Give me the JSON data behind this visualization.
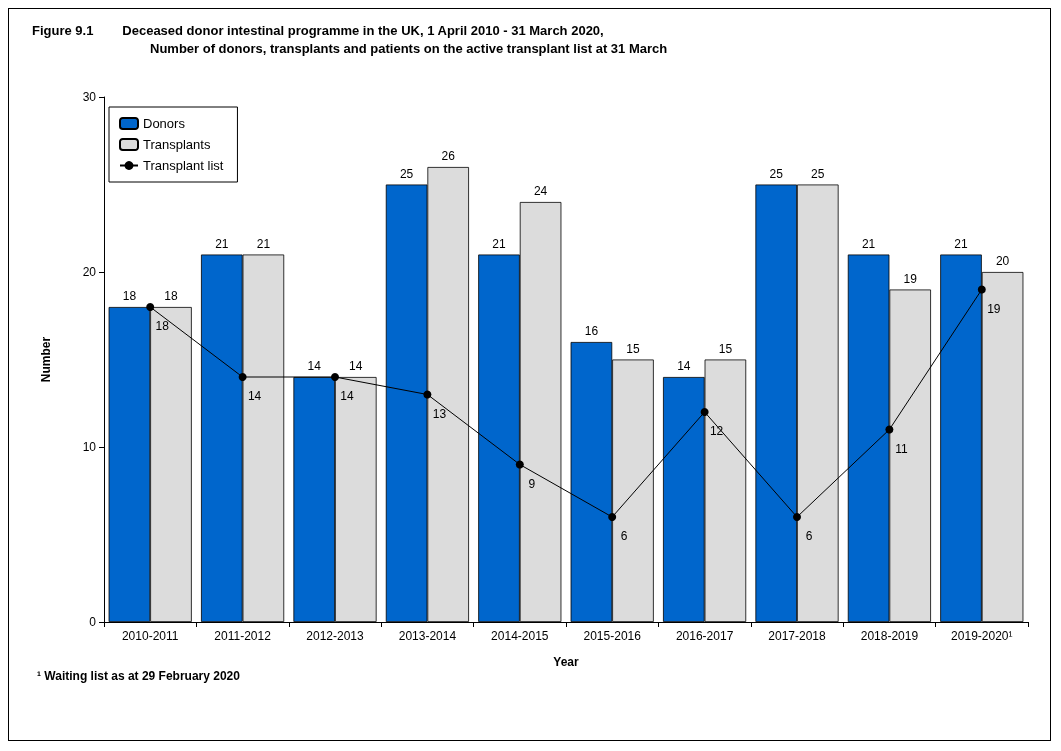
{
  "chart_data": {
    "type": "bar",
    "title": "Figure 9.1        Deceased donor intestinal programme in the UK, 1 April 2010 - 31 March 2020,",
    "subtitle": "Number of donors, transplants and patients on the active transplant list at 31 March",
    "xlabel": "Year",
    "ylabel": "Number",
    "categories": [
      "2010-2011",
      "2011-2012",
      "2012-2013",
      "2013-2014",
      "2014-2015",
      "2015-2016",
      "2016-2017",
      "2017-2018",
      "2018-2019",
      "2019-2020¹"
    ],
    "series": [
      {
        "name": "Donors",
        "color": "#0066cc",
        "values": [
          18,
          21,
          14,
          25,
          21,
          16,
          14,
          25,
          21,
          21
        ]
      },
      {
        "name": "Transplants",
        "color": "#dcdcdc",
        "values": [
          18,
          21,
          14,
          26,
          24,
          15,
          15,
          25,
          19,
          20
        ]
      },
      {
        "name": "Transplant list",
        "type": "line",
        "color": "#000000",
        "values": [
          18,
          14,
          14,
          13,
          9,
          6,
          12,
          6,
          11,
          19
        ]
      }
    ],
    "ylim": [
      0,
      30
    ],
    "yticks": [
      0,
      10,
      20,
      30
    ],
    "grid": false,
    "legend": "top left",
    "marker": "circle",
    "line_style": "solid",
    "data_labels": true,
    "annotations": [
      "¹ Waiting list as at 29 February 2020"
    ]
  }
}
